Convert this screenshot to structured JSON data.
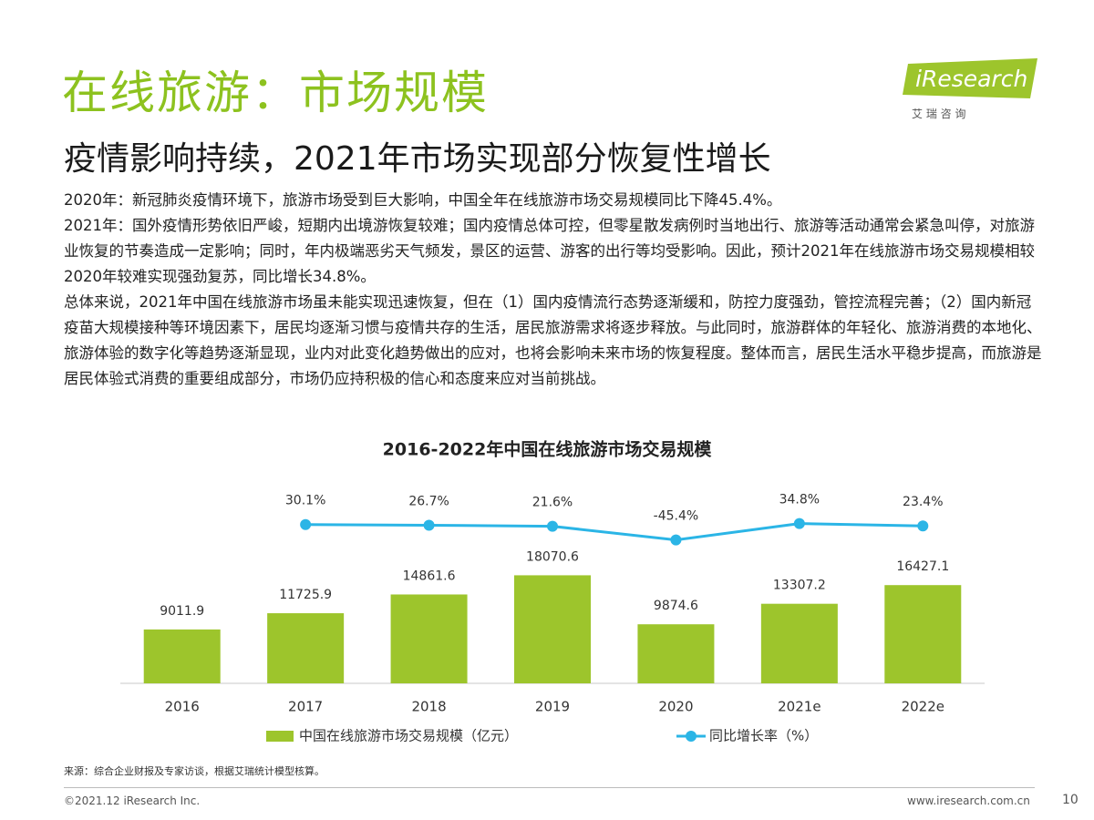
{
  "header": {
    "title": "在线旅游：市场规模",
    "subtitle": "疫情影响持续，2021年市场实现部分恢复性增长"
  },
  "logo": {
    "name": "iResearch",
    "tagline": "艾 瑞 咨 询"
  },
  "body": {
    "paragraphs": [
      "2020年：新冠肺炎疫情环境下，旅游市场受到巨大影响，中国全年在线旅游市场交易规模同比下降45.4%。",
      "2021年：国外疫情形势依旧严峻，短期内出境游恢复较难；国内疫情总体可控，但零星散发病例时当地出行、旅游等活动通常会紧急叫停，对旅游业恢复的节奏造成一定影响；同时，年内极端恶劣天气频发，景区的运营、游客的出行等均受影响。因此，预计2021年在线旅游市场交易规模相较2020年较难实现强劲复苏，同比增长34.8%。",
      "总体来说，2021年中国在线旅游市场虽未能实现迅速恢复，但在（1）国内疫情流行态势逐渐缓和，防控力度强劲，管控流程完善；（2）国内新冠疫苗大规模接种等环境因素下，居民均逐渐习惯与疫情共存的生活，居民旅游需求将逐步释放。与此同时，旅游群体的年轻化、旅游消费的本地化、旅游体验的数字化等趋势逐渐显现，业内对此变化趋势做出的应对，也将会影响未来市场的恢复程度。整体而言，居民生活水平稳步提高，而旅游是居民体验式消费的重要组成部分，市场仍应持积极的信心和态度来应对当前挑战。"
    ]
  },
  "chart_data": {
    "type": "combo",
    "title": "2016-2022年中国在线旅游市场交易规模",
    "categories": [
      "2016",
      "2017",
      "2018",
      "2019",
      "2020",
      "2021e",
      "2022e"
    ],
    "series": [
      {
        "name": "中国在线旅游市场交易规模（亿元）",
        "type": "bar",
        "color": "#9dc52c",
        "values": [
          9011.9,
          11725.9,
          14861.6,
          18070.6,
          9874.6,
          13307.2,
          16427.1
        ]
      },
      {
        "name": "同比增长率（%）",
        "type": "line",
        "axis": "y2",
        "color": "#2bb5e6",
        "values": [
          null,
          30.1,
          26.7,
          21.6,
          -45.4,
          34.8,
          23.4
        ],
        "value_labels": [
          null,
          "30.1%",
          "26.7%",
          "21.6%",
          "-45.4%",
          "34.8%",
          "23.4%"
        ]
      }
    ],
    "ylim": [
      0,
      32000
    ],
    "y2lim": [
      -750,
      190
    ],
    "grid": false
  },
  "footer": {
    "source": "来源：综合企业财报及专家访谈，根据艾瑞统计模型核算。",
    "copyright": "©2021.12 iResearch Inc.",
    "url": "www.iresearch.com.cn",
    "page": "10"
  }
}
